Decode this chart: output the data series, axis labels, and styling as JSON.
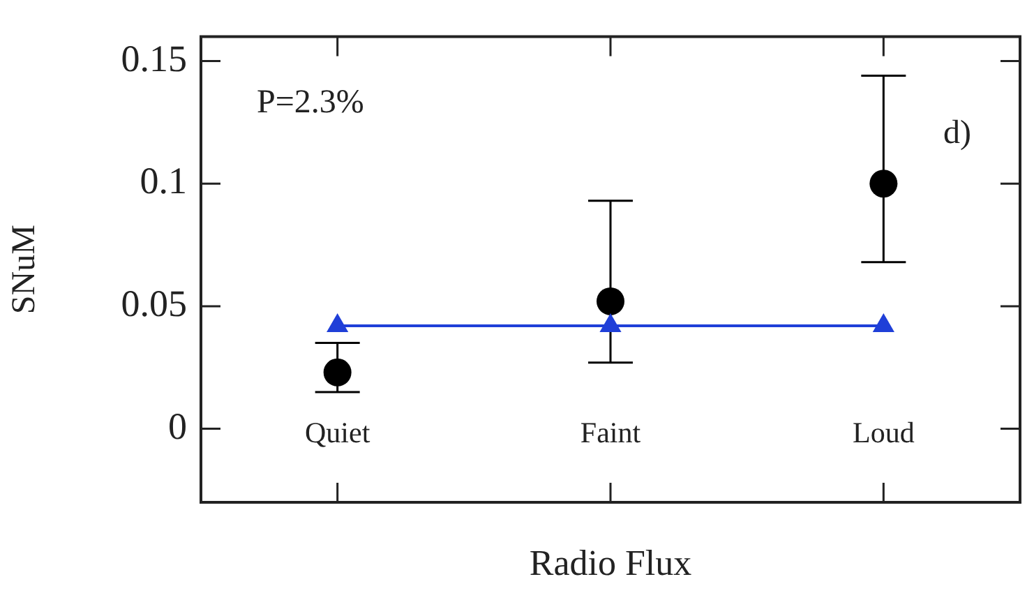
{
  "chart_data": {
    "type": "scatter",
    "xlabel": "Radio Flux",
    "ylabel": "SNuM",
    "categories": [
      "Quiet",
      "Faint",
      "Loud"
    ],
    "series": [
      {
        "color": "#000000",
        "marker": "circle",
        "values": [
          0.023,
          0.052,
          0.1
        ],
        "errors": [
          [
            0.015,
            0.035
          ],
          [
            0.027,
            0.093
          ],
          [
            0.068,
            0.144
          ]
        ]
      },
      {
        "type": "line",
        "color": "#1f3fd8",
        "marker": "triangle",
        "line_style": "solid",
        "values": [
          0.042,
          0.042,
          0.042
        ]
      }
    ],
    "ylim": [
      -0.03,
      0.16
    ],
    "yticks": [
      0,
      0.05,
      {
        "value": 0.1,
        "label": "0.1"
      },
      0.15
    ],
    "annotations": [
      "P=2.3%",
      "d)"
    ],
    "grid": false,
    "legend": false
  }
}
